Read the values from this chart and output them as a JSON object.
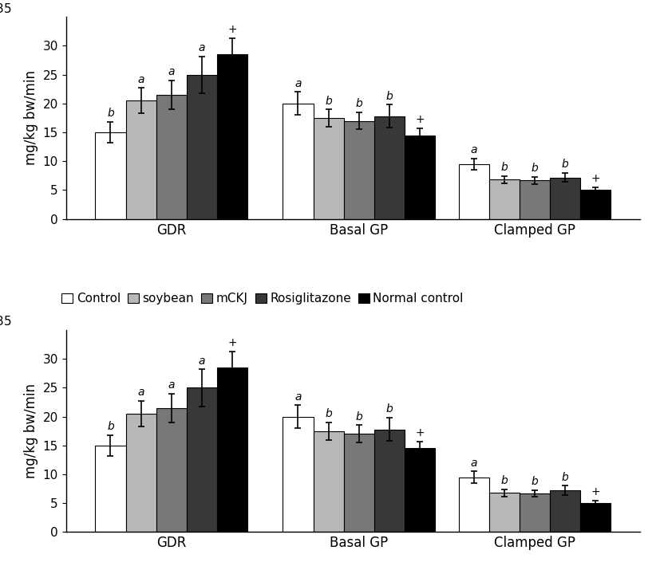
{
  "groups": [
    "GDR",
    "Basal GP",
    "Clamped GP"
  ],
  "series_labels": [
    "Control",
    "soybean",
    "mCKJ",
    "Rosiglitazone",
    "Normal control"
  ],
  "bar_colors": [
    "#ffffff",
    "#b8b8b8",
    "#787878",
    "#383838",
    "#000000"
  ],
  "bar_edgecolor": "#000000",
  "values": [
    [
      15.0,
      20.5,
      21.5,
      25.0,
      28.5
    ],
    [
      20.0,
      17.5,
      17.0,
      17.8,
      14.5
    ],
    [
      9.5,
      6.8,
      6.7,
      7.2,
      5.0
    ]
  ],
  "errors": [
    [
      1.8,
      2.2,
      2.5,
      3.2,
      2.8
    ],
    [
      2.0,
      1.5,
      1.5,
      2.0,
      1.2
    ],
    [
      1.0,
      0.6,
      0.6,
      0.8,
      0.5
    ]
  ],
  "letter_labels": [
    [
      "b",
      "a",
      "a",
      "a",
      "+"
    ],
    [
      "a",
      "b",
      "b",
      "b",
      "+"
    ],
    [
      "a",
      "b",
      "b",
      "b",
      "+"
    ]
  ],
  "ylabel": "mg/kg bw/min",
  "ylim": [
    0,
    35
  ],
  "yticks": [
    0,
    5,
    10,
    15,
    20,
    25,
    30
  ],
  "bar_width": 0.13,
  "group_centers": [
    0.38,
    1.18,
    1.93
  ],
  "legend_fontsize": 11,
  "tick_fontsize": 11,
  "label_fontsize": 12,
  "figsize": [
    8.27,
    7.1
  ],
  "dpi": 100
}
